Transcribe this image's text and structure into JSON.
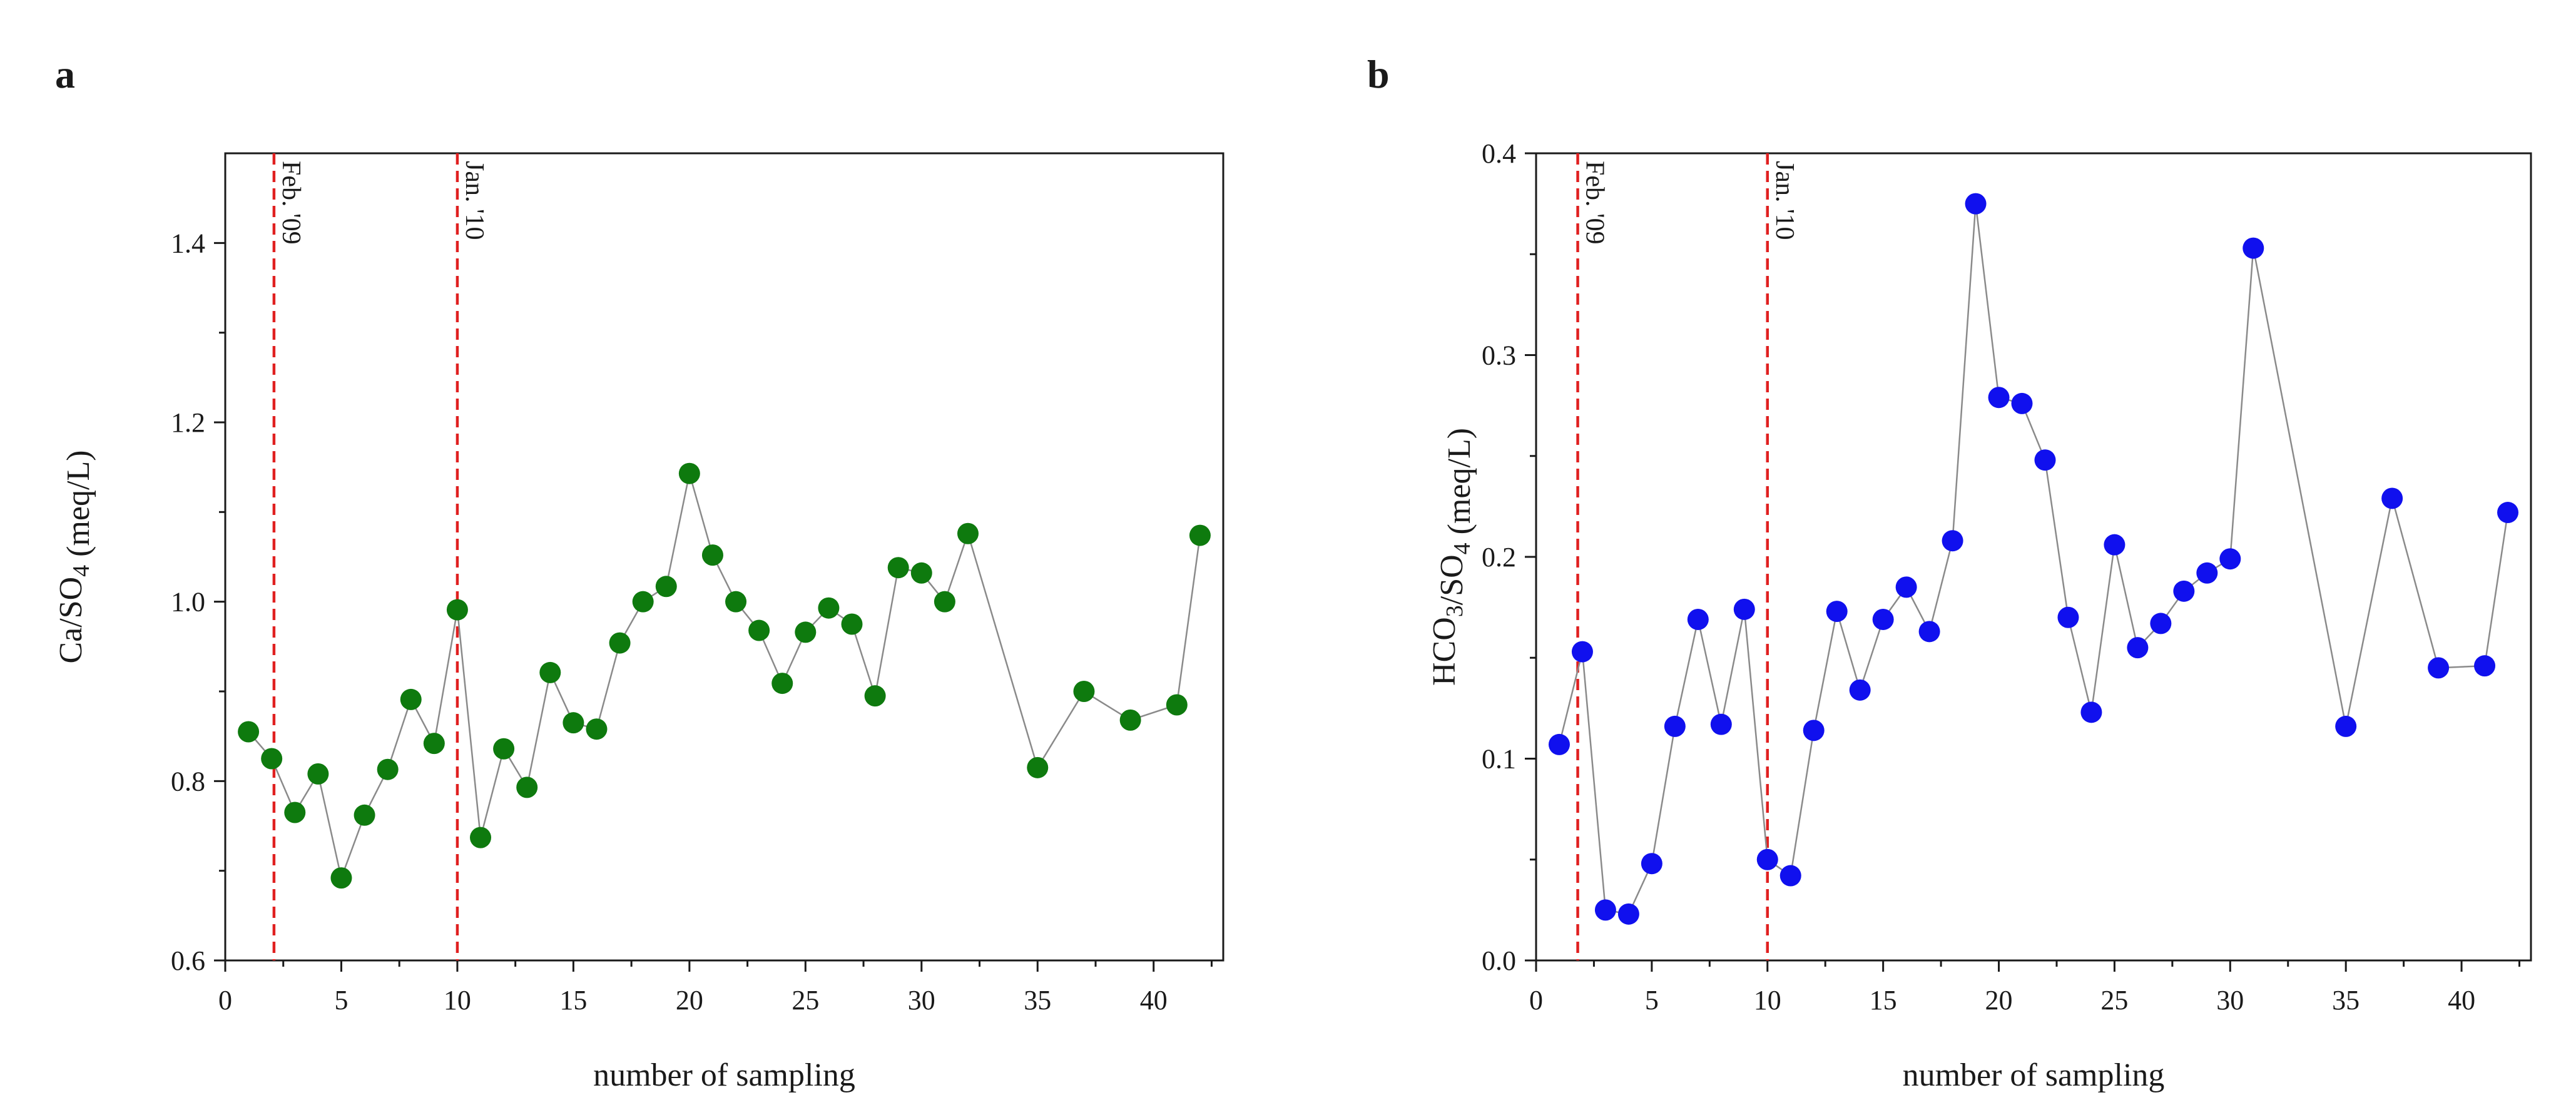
{
  "chart_data": [
    {
      "type": "scatter",
      "panel": "a",
      "title": "",
      "xlabel": "number of sampling",
      "ylabel_main": "Ca/SO",
      "ylabel_sub": "4",
      "ylabel_unit": " (meq/L)",
      "xlim": [
        0,
        43
      ],
      "ylim": [
        0.6,
        1.5
      ],
      "xticks": [
        0,
        5,
        10,
        15,
        20,
        25,
        30,
        35,
        40
      ],
      "xtick_labels": [
        "0",
        "5",
        "10",
        "15",
        "20",
        "25",
        "30",
        "35",
        "40"
      ],
      "yticks": [
        0.6,
        0.8,
        1.0,
        1.2,
        1.4
      ],
      "ytick_labels": [
        "0.6",
        "0.8",
        "1.0",
        "1.2",
        "1.4"
      ],
      "color": "#0e7a0e",
      "connected": true,
      "markers": [
        {
          "x": 2.1,
          "label": "Feb. '09"
        },
        {
          "x": 10,
          "label": "Jan. '10"
        }
      ],
      "series": [
        {
          "name": "Ca/SO4",
          "x": [
            1,
            2,
            3,
            4,
            5,
            6,
            7,
            8,
            9,
            10,
            11,
            12,
            13,
            14,
            15,
            16,
            17,
            18,
            19,
            20,
            21,
            22,
            23,
            24,
            25,
            26,
            27,
            28,
            29,
            30,
            31,
            32,
            35,
            37,
            39,
            41,
            42
          ],
          "y": [
            0.855,
            0.825,
            0.765,
            0.808,
            0.692,
            0.762,
            0.813,
            0.891,
            0.842,
            0.991,
            0.737,
            0.836,
            0.793,
            0.921,
            0.865,
            0.858,
            0.954,
            1.0,
            1.017,
            1.143,
            1.052,
            1.0,
            0.968,
            0.909,
            0.966,
            0.993,
            0.975,
            0.895,
            1.038,
            1.032,
            1.0,
            1.076,
            0.815,
            0.9,
            0.868,
            0.885,
            1.074
          ]
        }
      ]
    },
    {
      "type": "scatter",
      "panel": "b",
      "title": "",
      "xlabel": "number of sampling",
      "ylabel_main": "HCO",
      "ylabel_sub1": "3",
      "ylabel_mid": "/SO",
      "ylabel_sub2": "4",
      "ylabel_unit": " (meq/L)",
      "xlim": [
        0,
        43
      ],
      "ylim": [
        0.0,
        0.4
      ],
      "xticks": [
        0,
        5,
        10,
        15,
        20,
        25,
        30,
        35,
        40
      ],
      "xtick_labels": [
        "0",
        "5",
        "10",
        "15",
        "20",
        "25",
        "30",
        "35",
        "40"
      ],
      "yticks": [
        0.0,
        0.1,
        0.2,
        0.3,
        0.4
      ],
      "ytick_labels": [
        "0.0",
        "0.1",
        "0.2",
        "0.3",
        "0.4"
      ],
      "color": "#1010ee",
      "connected": true,
      "markers": [
        {
          "x": 1.8,
          "label": "Feb. '09"
        },
        {
          "x": 10,
          "label": "Jan. '10"
        }
      ],
      "series": [
        {
          "name": "HCO3/SO4",
          "x": [
            1,
            2,
            3,
            4,
            5,
            6,
            7,
            8,
            9,
            10,
            11,
            12,
            13,
            14,
            15,
            16,
            17,
            18,
            19,
            20,
            21,
            22,
            23,
            24,
            25,
            26,
            27,
            28,
            29,
            30,
            31,
            35,
            37,
            39,
            41,
            42
          ],
          "y": [
            0.107,
            0.153,
            0.025,
            0.023,
            0.048,
            0.116,
            0.169,
            0.117,
            0.174,
            0.05,
            0.042,
            0.114,
            0.173,
            0.134,
            0.169,
            0.185,
            0.163,
            0.208,
            0.375,
            0.279,
            0.276,
            0.248,
            0.17,
            0.123,
            0.206,
            0.155,
            0.167,
            0.183,
            0.192,
            0.199,
            0.353,
            0.116,
            0.229,
            0.145,
            0.146,
            0.222
          ]
        }
      ]
    }
  ]
}
